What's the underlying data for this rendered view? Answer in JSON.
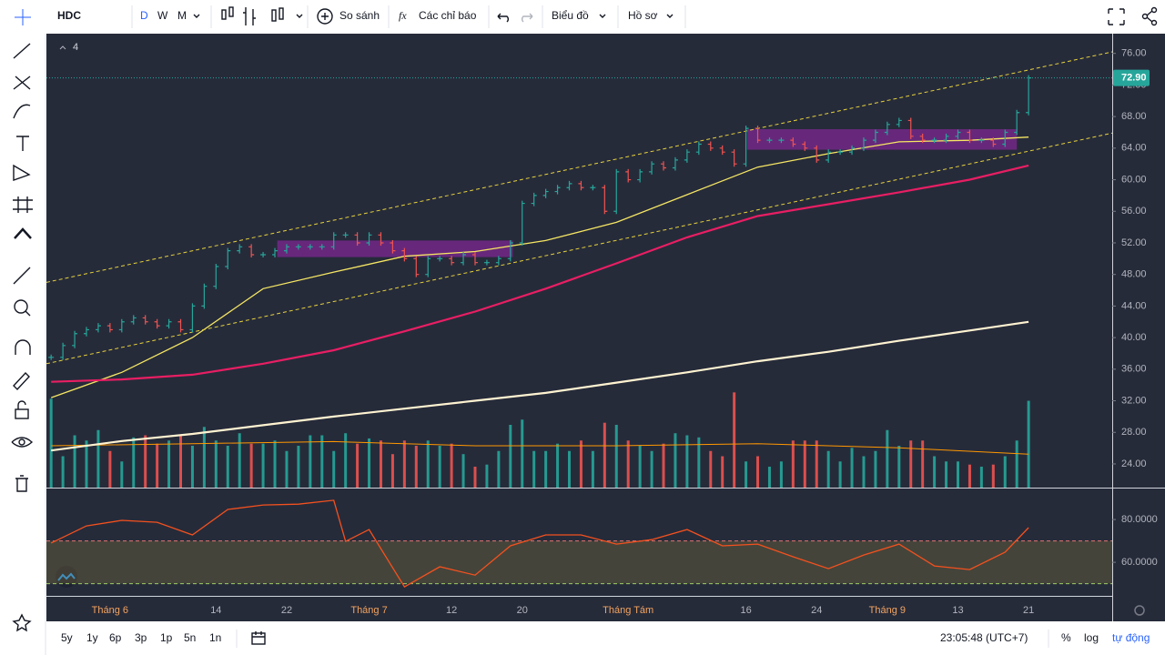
{
  "toolbar": {
    "symbol": "HDC",
    "intervals": [
      "D",
      "W",
      "M"
    ],
    "compare": "So sánh",
    "indicators": "Các chỉ báo",
    "chart": "Biểu đồ",
    "profile": "Hồ sơ"
  },
  "legend_count": "4",
  "bottom_bar": {
    "ranges": [
      "5y",
      "1y",
      "6p",
      "3p",
      "1p",
      "5n",
      "1n"
    ],
    "time": "23:05:48 (UTC+7)",
    "percent": "%",
    "log": "log",
    "auto": "tự động"
  },
  "chart_data": {
    "type": "ohlc",
    "categories": [
      null,
      null,
      null,
      null,
      null,
      "Tháng 6",
      null,
      null,
      null,
      null,
      null,
      null,
      null,
      null,
      "14",
      null,
      null,
      null,
      null,
      null,
      "22",
      null,
      null,
      null,
      null,
      null,
      null,
      "Tháng 7",
      null,
      null,
      null,
      null,
      null,
      null,
      "12",
      null,
      null,
      null,
      null,
      null,
      "20",
      null,
      null,
      null,
      null,
      null,
      null,
      null,
      null,
      "Tháng Tám",
      null,
      null,
      null,
      null,
      null,
      null,
      null,
      null,
      null,
      "16",
      null,
      null,
      null,
      null,
      null,
      "24",
      null,
      null,
      null,
      null,
      null,
      "Tháng 9",
      null,
      null,
      null,
      null,
      null,
      "13",
      null,
      null,
      null,
      null,
      null,
      "21"
    ],
    "close": [
      37.5,
      39,
      40.5,
      41,
      41.5,
      41,
      42,
      42.5,
      42,
      41.5,
      42,
      41,
      44,
      46.5,
      49,
      51,
      51.5,
      50.5,
      50.5,
      51,
      51.5,
      51.5,
      51.5,
      51.5,
      53,
      53,
      52,
      53,
      52,
      51,
      50,
      48,
      50,
      50,
      49.5,
      50.5,
      49.5,
      49.5,
      50,
      52,
      57,
      58,
      58.5,
      59,
      59.5,
      59,
      59,
      56,
      61,
      60,
      61,
      62,
      61.5,
      62.5,
      63.5,
      64.5,
      64,
      63.5,
      62,
      66.5,
      65,
      65,
      65,
      64.5,
      64,
      62.5,
      63.5,
      63.5,
      64,
      65,
      66,
      67,
      67.5,
      65.5,
      65,
      65,
      65.5,
      66,
      65,
      65,
      64.5,
      66,
      68.5,
      72.9
    ],
    "volume": [
      85,
      30,
      50,
      45,
      55,
      35,
      25,
      48,
      50,
      42,
      45,
      50,
      40,
      58,
      45,
      40,
      52,
      42,
      42,
      45,
      35,
      40,
      50,
      50,
      35,
      52,
      42,
      47,
      45,
      32,
      45,
      40,
      45,
      40,
      42,
      32,
      20,
      22,
      35,
      60,
      65,
      35,
      35,
      42,
      35,
      45,
      35,
      62,
      60,
      45,
      40,
      35,
      42,
      52,
      50,
      48,
      35,
      30,
      91,
      25,
      30,
      20,
      25,
      45,
      45,
      45,
      35,
      25,
      38,
      30,
      35,
      55,
      40,
      45,
      45,
      30,
      25,
      25,
      22,
      20,
      22,
      30,
      45,
      83
    ],
    "up_color": "#26a69a",
    "down_color": "#ef5350",
    "xlim": [
      -0.4,
      90.1
    ],
    "ylim": [
      21,
      78.5
    ],
    "yticks": [
      {
        "value": 24,
        "label": "24.00"
      },
      {
        "value": 28,
        "label": "28.00"
      },
      {
        "value": 32,
        "label": "32.00"
      },
      {
        "value": 36,
        "label": "36.00"
      },
      {
        "value": 40,
        "label": "40.00"
      },
      {
        "value": 44,
        "label": "44.00"
      },
      {
        "value": 48,
        "label": "48.00"
      },
      {
        "value": 52,
        "label": "52.00"
      },
      {
        "value": 56,
        "label": "56.00"
      },
      {
        "value": 60,
        "label": "60.00"
      },
      {
        "value": 64,
        "label": "64.00"
      },
      {
        "value": 68,
        "label": "68.00"
      },
      {
        "value": 72,
        "label": "72.00"
      },
      {
        "value": 76,
        "label": "76.00"
      }
    ],
    "y2lim": [
      0,
      100
    ],
    "grid": false,
    "last_price": {
      "value": 72.9,
      "label": "72.90"
    },
    "moving_averages": [
      {
        "color": "#f5e663",
        "x": [
          0,
          6,
          12,
          18,
          24,
          30,
          36,
          42,
          48,
          54,
          60,
          66,
          72,
          78,
          83
        ],
        "values": [
          32.4,
          35.6,
          40,
          46.2,
          48.3,
          50.3,
          50.9,
          52.3,
          54.6,
          58.1,
          61.6,
          63.3,
          64.8,
          65,
          65.4
        ]
      },
      {
        "color": "#e91e63",
        "x": [
          0,
          6,
          12,
          18,
          24,
          30,
          36,
          42,
          48,
          54,
          60,
          66,
          72,
          78,
          83
        ],
        "values": [
          34.4,
          34.7,
          35.3,
          36.7,
          38.4,
          40.8,
          43.3,
          46.2,
          49.4,
          52.7,
          55.4,
          56.9,
          58.4,
          60,
          61.8
        ]
      },
      {
        "color": "#fff3d1",
        "x": [
          0,
          6,
          12,
          18,
          24,
          30,
          36,
          42,
          48,
          54,
          60,
          66,
          72,
          78,
          83
        ],
        "values": [
          25.7,
          26.9,
          27.8,
          28.9,
          30,
          31,
          32,
          33,
          34.3,
          35.6,
          37,
          38.2,
          39.6,
          40.9,
          42
        ]
      }
    ],
    "volume_average": {
      "color": "#ff9800",
      "x": [
        0,
        12,
        24,
        36,
        48,
        60,
        72,
        83
      ],
      "values": [
        40,
        42,
        44,
        40,
        40,
        42,
        38,
        32
      ]
    },
    "channel": {
      "color": "#e6d23c",
      "lines": [
        {
          "x": [
            -0.4,
            90.1
          ],
          "values": [
            47.0,
            76.2
          ]
        },
        {
          "x": [
            -0.4,
            90.1
          ],
          "values": [
            36.7,
            65.9
          ]
        }
      ]
    },
    "boxes": {
      "color": "#9c27b0",
      "items": [
        {
          "x": [
            19.2,
            39.2
          ],
          "values": [
            52.3,
            50.2
          ]
        },
        {
          "x": [
            59.1,
            82
          ],
          "values": [
            66.4,
            63.8
          ]
        }
      ]
    },
    "rsi": {
      "color": "#f4511e",
      "ylim": [
        44.3,
        94.5
      ],
      "yticks": [
        {
          "value": 80,
          "label": "80.0000"
        },
        {
          "value": 60,
          "label": "60.0000"
        }
      ],
      "band": [
        50,
        70
      ],
      "x": [
        0,
        3,
        6,
        9,
        12,
        15,
        18,
        21,
        24,
        25,
        27,
        30,
        33,
        36,
        39,
        42,
        45,
        48,
        51,
        54,
        57,
        60,
        63,
        66,
        69,
        72,
        75,
        78,
        81,
        83
      ],
      "values": [
        69,
        77,
        79.6,
        78.7,
        72.8,
        84.7,
        86.8,
        87.2,
        89,
        69.8,
        75.3,
        48.5,
        57.9,
        54,
        67.7,
        72.8,
        72.8,
        68.5,
        70.6,
        75.3,
        67.7,
        68.5,
        62.6,
        57,
        63.4,
        68.5,
        58.3,
        56.6,
        64.7,
        76.2
      ]
    }
  }
}
